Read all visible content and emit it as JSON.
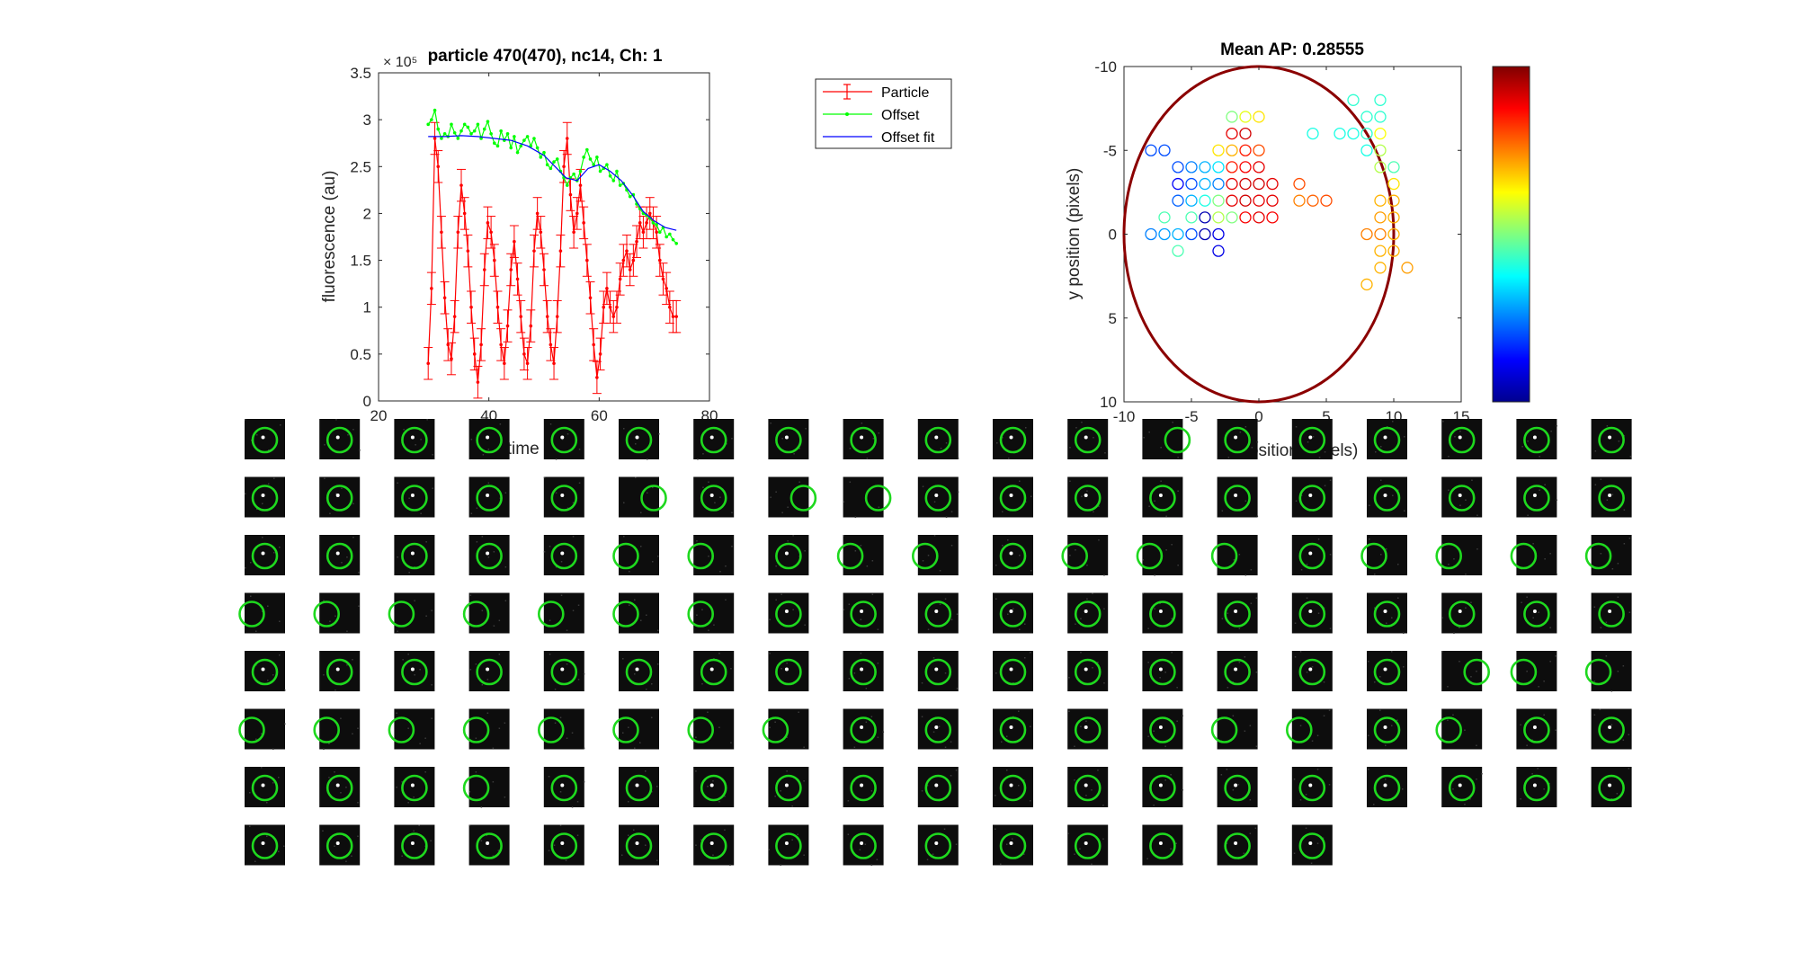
{
  "figure": {
    "background": "#ffffff"
  },
  "chart_data": [
    {
      "type": "line",
      "title": "particle 470(470), nc14, Ch: 1",
      "xlabel": "time (min)",
      "ylabel": "fluorescence (au)",
      "exponent_label": "× 10⁵",
      "xlim": [
        20,
        80
      ],
      "ylim": [
        0,
        3.5
      ],
      "xticks": [
        "20",
        "40",
        "60",
        "80"
      ],
      "yticks": [
        "0",
        "0.5",
        "1",
        "1.5",
        "2",
        "2.5",
        "3",
        "3.5"
      ],
      "legend_position": "outside-top-right",
      "series": [
        {
          "name": "Particle",
          "color": "#ff0000",
          "marker": "point",
          "error_bars": true,
          "error": 0.17,
          "x": [
            29.0,
            29.6,
            30.2,
            30.8,
            31.4,
            32.0,
            32.6,
            33.2,
            33.8,
            34.4,
            35.0,
            35.6,
            36.2,
            36.8,
            37.4,
            38.0,
            38.6,
            39.2,
            39.8,
            40.4,
            41.0,
            41.6,
            42.2,
            42.8,
            43.4,
            44.0,
            44.6,
            45.2,
            45.8,
            46.4,
            47.0,
            47.6,
            48.2,
            48.8,
            49.4,
            50.0,
            50.6,
            51.2,
            51.8,
            52.4,
            53.0,
            53.6,
            54.2,
            54.8,
            55.4,
            56.0,
            56.6,
            57.2,
            57.8,
            58.4,
            59.0,
            59.6,
            60.2,
            60.8,
            61.4,
            62.0,
            62.6,
            63.2,
            63.8,
            64.4,
            65.0,
            65.6,
            66.2,
            66.8,
            67.4,
            68.0,
            68.6,
            69.2,
            69.8,
            70.4,
            71.0,
            71.6,
            72.2,
            72.8,
            73.4,
            74.0
          ],
          "values": [
            0.4,
            1.2,
            2.8,
            2.5,
            1.8,
            1.1,
            0.6,
            0.45,
            0.9,
            1.8,
            2.3,
            2.0,
            1.6,
            1.0,
            0.5,
            0.2,
            0.6,
            1.4,
            1.9,
            1.8,
            1.5,
            1.0,
            0.6,
            0.4,
            0.8,
            1.4,
            1.7,
            1.3,
            0.9,
            0.5,
            0.4,
            0.8,
            1.6,
            2.0,
            1.8,
            1.4,
            0.9,
            0.6,
            0.4,
            0.9,
            1.6,
            2.5,
            2.8,
            2.2,
            1.8,
            2.0,
            2.3,
            1.9,
            1.5,
            1.1,
            0.6,
            0.25,
            0.5,
            1.0,
            1.2,
            1.0,
            0.9,
            1.0,
            1.3,
            1.5,
            1.6,
            1.4,
            1.5,
            1.7,
            1.9,
            1.8,
            1.9,
            2.0,
            1.9,
            1.8,
            1.5,
            1.3,
            1.2,
            1.0,
            0.9,
            0.9
          ]
        },
        {
          "name": "Offset",
          "color": "#00ff00",
          "marker": "point",
          "x": [
            29.0,
            29.6,
            30.2,
            30.8,
            31.4,
            32.0,
            32.6,
            33.2,
            33.8,
            34.4,
            35.0,
            35.6,
            36.2,
            36.8,
            37.4,
            38.0,
            38.6,
            39.2,
            39.8,
            40.4,
            41.0,
            41.6,
            42.2,
            42.8,
            43.4,
            44.0,
            44.6,
            45.2,
            45.8,
            46.4,
            47.0,
            47.6,
            48.2,
            48.8,
            49.4,
            50.0,
            50.6,
            51.2,
            51.8,
            52.4,
            53.0,
            53.6,
            54.2,
            54.8,
            55.4,
            56.0,
            56.6,
            57.2,
            57.8,
            58.4,
            59.0,
            59.6,
            60.2,
            60.8,
            61.4,
            62.0,
            62.6,
            63.2,
            63.8,
            64.4,
            65.0,
            65.6,
            66.2,
            66.8,
            67.4,
            68.0,
            68.6,
            69.2,
            69.8,
            70.4,
            71.0,
            71.6,
            72.2,
            72.8,
            73.4,
            74.0
          ],
          "values": [
            2.95,
            3.0,
            3.1,
            2.9,
            2.8,
            2.85,
            2.82,
            2.95,
            2.86,
            2.8,
            2.88,
            2.95,
            2.92,
            2.85,
            2.88,
            2.95,
            2.8,
            2.9,
            2.98,
            2.85,
            2.75,
            2.72,
            2.88,
            2.78,
            2.85,
            2.7,
            2.82,
            2.65,
            2.72,
            2.78,
            2.82,
            2.72,
            2.8,
            2.7,
            2.6,
            2.65,
            2.52,
            2.48,
            2.55,
            2.58,
            2.45,
            2.38,
            2.3,
            2.38,
            2.42,
            2.35,
            2.45,
            2.6,
            2.68,
            2.58,
            2.52,
            2.6,
            2.45,
            2.48,
            2.52,
            2.4,
            2.35,
            2.45,
            2.3,
            2.32,
            2.25,
            2.18,
            2.2,
            2.1,
            2.05,
            2.0,
            1.98,
            1.95,
            1.9,
            1.88,
            1.8,
            1.85,
            1.75,
            1.78,
            1.72,
            1.68
          ]
        },
        {
          "name": "Offset fit",
          "color": "#0000ff",
          "marker": "none",
          "x": [
            29,
            32,
            35,
            38,
            41,
            44,
            47,
            50,
            52,
            54,
            56,
            58,
            60,
            62,
            64,
            66,
            68,
            70,
            72,
            74
          ],
          "values": [
            2.82,
            2.82,
            2.83,
            2.82,
            2.8,
            2.78,
            2.72,
            2.62,
            2.5,
            2.38,
            2.35,
            2.48,
            2.52,
            2.45,
            2.35,
            2.2,
            2.02,
            1.92,
            1.85,
            1.82
          ]
        }
      ]
    },
    {
      "type": "scatter",
      "title": "Mean AP: 0.28555",
      "xlabel": "x position (pixels)",
      "ylabel": "y position (pixels)",
      "xlim": [
        -10,
        15
      ],
      "ylim": [
        10,
        -10
      ],
      "y_axis_reversed": true,
      "xticks": [
        "-10",
        "-5",
        "0",
        "5",
        "10",
        "15"
      ],
      "yticks": [
        "-10",
        "-5",
        "0",
        "5",
        "10"
      ],
      "colormap": "jet",
      "colorbar": true,
      "ellipse": {
        "center": [
          0,
          0
        ],
        "radius_x": 10,
        "radius_y": 10,
        "color": "#8b0000"
      },
      "points": [
        {
          "x": -8,
          "y": -5,
          "c": 0.2
        },
        {
          "x": -7,
          "y": -5,
          "c": 0.2
        },
        {
          "x": -6,
          "y": -4,
          "c": 0.2
        },
        {
          "x": -5,
          "y": -4,
          "c": 0.25
        },
        {
          "x": -4,
          "y": -4,
          "c": 0.3
        },
        {
          "x": -3,
          "y": -4,
          "c": 0.35
        },
        {
          "x": -2,
          "y": -4,
          "c": 0.85
        },
        {
          "x": -1,
          "y": -4,
          "c": 0.88
        },
        {
          "x": 0,
          "y": -4,
          "c": 0.9
        },
        {
          "x": -6,
          "y": -3,
          "c": 0.12
        },
        {
          "x": -5,
          "y": -3,
          "c": 0.2
        },
        {
          "x": -4,
          "y": -3,
          "c": 0.3
        },
        {
          "x": -3,
          "y": -3,
          "c": 0.25
        },
        {
          "x": -2,
          "y": -3,
          "c": 0.9
        },
        {
          "x": -1,
          "y": -3,
          "c": 0.92
        },
        {
          "x": 0,
          "y": -3,
          "c": 0.92
        },
        {
          "x": 1,
          "y": -3,
          "c": 0.9
        },
        {
          "x": -6,
          "y": -2,
          "c": 0.22
        },
        {
          "x": -5,
          "y": -2,
          "c": 0.3
        },
        {
          "x": -4,
          "y": -2,
          "c": 0.4
        },
        {
          "x": -3,
          "y": -2,
          "c": 0.5
        },
        {
          "x": -2,
          "y": -2,
          "c": 0.9
        },
        {
          "x": -1,
          "y": -2,
          "c": 0.92
        },
        {
          "x": 0,
          "y": -2,
          "c": 0.9
        },
        {
          "x": 1,
          "y": -2,
          "c": 0.9
        },
        {
          "x": -7,
          "y": -1,
          "c": 0.45
        },
        {
          "x": -5,
          "y": -1,
          "c": 0.45
        },
        {
          "x": -4,
          "y": -1,
          "c": 0.05
        },
        {
          "x": -3,
          "y": -1,
          "c": 0.55
        },
        {
          "x": -2,
          "y": -1,
          "c": 0.5
        },
        {
          "x": -1,
          "y": -1,
          "c": 0.88
        },
        {
          "x": 0,
          "y": -1,
          "c": 0.9
        },
        {
          "x": 1,
          "y": -1,
          "c": 0.88
        },
        {
          "x": -8,
          "y": 0,
          "c": 0.25
        },
        {
          "x": -7,
          "y": 0,
          "c": 0.28
        },
        {
          "x": -6,
          "y": 0,
          "c": 0.3
        },
        {
          "x": -5,
          "y": 0,
          "c": 0.2
        },
        {
          "x": -4,
          "y": 0,
          "c": 0.05
        },
        {
          "x": -3,
          "y": 0,
          "c": 0.1
        },
        {
          "x": -6,
          "y": 1,
          "c": 0.45
        },
        {
          "x": -3,
          "y": 1,
          "c": 0.1
        },
        {
          "x": -2,
          "y": -7,
          "c": 0.5
        },
        {
          "x": -1,
          "y": -7,
          "c": 0.6
        },
        {
          "x": 0,
          "y": -7,
          "c": 0.65
        },
        {
          "x": -2,
          "y": -6,
          "c": 0.9
        },
        {
          "x": -1,
          "y": -6,
          "c": 0.92
        },
        {
          "x": -3,
          "y": -5,
          "c": 0.65
        },
        {
          "x": -2,
          "y": -5,
          "c": 0.7
        },
        {
          "x": -1,
          "y": -5,
          "c": 0.85
        },
        {
          "x": 0,
          "y": -5,
          "c": 0.8
        },
        {
          "x": 3,
          "y": -3,
          "c": 0.8
        },
        {
          "x": 3,
          "y": -2,
          "c": 0.75
        },
        {
          "x": 4,
          "y": -2,
          "c": 0.78
        },
        {
          "x": 5,
          "y": -2,
          "c": 0.8
        },
        {
          "x": 4,
          "y": -6,
          "c": 0.4
        },
        {
          "x": 6,
          "y": -6,
          "c": 0.4
        },
        {
          "x": 7,
          "y": -6,
          "c": 0.4
        },
        {
          "x": 8,
          "y": -6,
          "c": 0.42
        },
        {
          "x": 7,
          "y": -8,
          "c": 0.42
        },
        {
          "x": 9,
          "y": -8,
          "c": 0.42
        },
        {
          "x": 8,
          "y": -7,
          "c": 0.42
        },
        {
          "x": 9,
          "y": -7,
          "c": 0.42
        },
        {
          "x": 9,
          "y": -6,
          "c": 0.62
        },
        {
          "x": 8,
          "y": -5,
          "c": 0.4
        },
        {
          "x": 9,
          "y": -5,
          "c": 0.55
        },
        {
          "x": 9,
          "y": -4,
          "c": 0.55
        },
        {
          "x": 10,
          "y": -4,
          "c": 0.45
        },
        {
          "x": 10,
          "y": -3,
          "c": 0.65
        },
        {
          "x": 9,
          "y": -2,
          "c": 0.7
        },
        {
          "x": 10,
          "y": -2,
          "c": 0.7
        },
        {
          "x": 9,
          "y": -1,
          "c": 0.72
        },
        {
          "x": 10,
          "y": -1,
          "c": 0.7
        },
        {
          "x": 8,
          "y": 0,
          "c": 0.75
        },
        {
          "x": 9,
          "y": 0,
          "c": 0.75
        },
        {
          "x": 10,
          "y": 0,
          "c": 0.7
        },
        {
          "x": 9,
          "y": 1,
          "c": 0.7
        },
        {
          "x": 10,
          "y": 1,
          "c": 0.7
        },
        {
          "x": 9,
          "y": 2,
          "c": 0.7
        },
        {
          "x": 11,
          "y": 2,
          "c": 0.72
        },
        {
          "x": 8,
          "y": 3,
          "c": 0.7
        }
      ]
    }
  ],
  "thumbnails": {
    "rows": [
      {
        "count": 19,
        "markers": [
          "center",
          "center",
          "center",
          "center",
          "center",
          "center",
          "center",
          "center",
          "center",
          "center",
          "center",
          "center",
          "right",
          "center",
          "center",
          "center",
          "center",
          "center",
          "center"
        ]
      },
      {
        "count": 19,
        "markers": [
          "center",
          "center",
          "center",
          "center",
          "center",
          "right",
          "center",
          "right",
          "right",
          "center",
          "center",
          "center",
          "center",
          "center",
          "center",
          "center",
          "center",
          "center",
          "center"
        ]
      },
      {
        "count": 19,
        "markers": [
          "center",
          "center",
          "center",
          "center",
          "center",
          "left",
          "left",
          "center",
          "left",
          "left",
          "center",
          "left",
          "left",
          "left",
          "center",
          "left",
          "left",
          "left",
          "left"
        ]
      },
      {
        "count": 19,
        "markers": [
          "left",
          "left",
          "left",
          "left",
          "left",
          "left",
          "left",
          "center",
          "center",
          "center",
          "center",
          "center",
          "center",
          "center",
          "center",
          "center",
          "center",
          "center",
          "center"
        ]
      },
      {
        "count": 19,
        "markers": [
          "center",
          "center",
          "center",
          "center",
          "center",
          "center",
          "center",
          "center",
          "center",
          "center",
          "center",
          "center",
          "center",
          "center",
          "center",
          "center",
          "right",
          "left",
          "left"
        ]
      },
      {
        "count": 19,
        "markers": [
          "left",
          "left",
          "left",
          "left",
          "left",
          "left",
          "left",
          "left",
          "center",
          "center",
          "center",
          "center",
          "center",
          "left",
          "left",
          "center",
          "left",
          "center",
          "center"
        ]
      },
      {
        "count": 19,
        "markers": [
          "center",
          "center",
          "center",
          "left",
          "center",
          "center",
          "center",
          "center",
          "center",
          "center",
          "center",
          "center",
          "center",
          "center",
          "center",
          "center",
          "center",
          "center",
          "center"
        ]
      },
      {
        "count": 15,
        "markers": [
          "center",
          "center",
          "center",
          "center",
          "center",
          "center",
          "center",
          "center",
          "center",
          "center",
          "center",
          "center",
          "center",
          "center",
          "center"
        ]
      }
    ]
  },
  "colors": {
    "axis": "#262626",
    "circle": "#1ed81e",
    "ellipse": "#8b0000"
  }
}
